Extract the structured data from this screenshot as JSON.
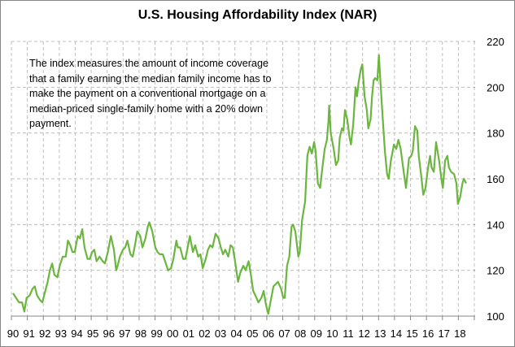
{
  "chart_data": {
    "type": "line",
    "title": "U.S. Housing Affordability Index (NAR)",
    "annotation": "The index measures the amount of income coverage that a  family earning the median family income has to make the payment on a conventional mortgage on a median-priced single-family home with a 20% down payment.",
    "xlabel": "",
    "ylabel": "",
    "y_axis_side": "right",
    "ylim": [
      100,
      220
    ],
    "yticks": [
      100,
      120,
      140,
      160,
      180,
      200,
      220
    ],
    "xlim": [
      1990,
      2019
    ],
    "xtick_labels": [
      "90",
      "91",
      "92",
      "93",
      "94",
      "95",
      "96",
      "97",
      "98",
      "99",
      "00",
      "01",
      "02",
      "03",
      "04",
      "05",
      "06",
      "07",
      "08",
      "09",
      "10",
      "11",
      "12",
      "13",
      "14",
      "15",
      "16",
      "17",
      "18"
    ],
    "grid": true,
    "legend": "none",
    "series_color": "#6BB63F",
    "series": [
      {
        "name": "Housing Affordability Index",
        "points": [
          [
            1990.0,
            110
          ],
          [
            1990.2,
            108
          ],
          [
            1990.4,
            106
          ],
          [
            1990.6,
            106
          ],
          [
            1990.75,
            102
          ],
          [
            1990.9,
            108
          ],
          [
            1991.1,
            109
          ],
          [
            1991.3,
            112
          ],
          [
            1991.45,
            113
          ],
          [
            1991.6,
            109
          ],
          [
            1991.8,
            107
          ],
          [
            1991.95,
            106
          ],
          [
            1992.1,
            110
          ],
          [
            1992.3,
            115
          ],
          [
            1992.45,
            120
          ],
          [
            1992.6,
            123
          ],
          [
            1992.75,
            118
          ],
          [
            1992.95,
            117
          ],
          [
            1993.1,
            122
          ],
          [
            1993.3,
            126
          ],
          [
            1993.5,
            126
          ],
          [
            1993.65,
            133
          ],
          [
            1993.8,
            131
          ],
          [
            1993.95,
            128
          ],
          [
            1994.1,
            128
          ],
          [
            1994.3,
            135
          ],
          [
            1994.45,
            134
          ],
          [
            1994.6,
            138
          ],
          [
            1994.75,
            130
          ],
          [
            1994.95,
            125
          ],
          [
            1995.1,
            125
          ],
          [
            1995.25,
            128
          ],
          [
            1995.4,
            129
          ],
          [
            1995.55,
            124
          ],
          [
            1995.75,
            126
          ],
          [
            1995.95,
            124
          ],
          [
            1996.1,
            123
          ],
          [
            1996.3,
            128
          ],
          [
            1996.5,
            135
          ],
          [
            1996.7,
            129
          ],
          [
            1996.85,
            120
          ],
          [
            1996.95,
            122
          ],
          [
            1997.1,
            126
          ],
          [
            1997.3,
            129
          ],
          [
            1997.45,
            130
          ],
          [
            1997.6,
            133
          ],
          [
            1997.8,
            127
          ],
          [
            1997.95,
            126
          ],
          [
            1998.1,
            131
          ],
          [
            1998.25,
            137
          ],
          [
            1998.45,
            135
          ],
          [
            1998.6,
            130
          ],
          [
            1998.8,
            134
          ],
          [
            1998.95,
            139
          ],
          [
            1999.05,
            141
          ],
          [
            1999.25,
            137
          ],
          [
            1999.45,
            130
          ],
          [
            1999.6,
            128
          ],
          [
            1999.75,
            127
          ],
          [
            1999.95,
            127
          ],
          [
            2000.1,
            124
          ],
          [
            2000.3,
            120
          ],
          [
            2000.5,
            121
          ],
          [
            2000.65,
            125
          ],
          [
            2000.85,
            133
          ],
          [
            2000.95,
            130
          ],
          [
            2001.1,
            130
          ],
          [
            2001.3,
            125
          ],
          [
            2001.45,
            125
          ],
          [
            2001.6,
            130
          ],
          [
            2001.75,
            135
          ],
          [
            2001.95,
            128
          ],
          [
            2002.1,
            131
          ],
          [
            2002.3,
            126
          ],
          [
            2002.45,
            127
          ],
          [
            2002.6,
            121
          ],
          [
            2002.8,
            125
          ],
          [
            2002.95,
            129
          ],
          [
            2003.1,
            131
          ],
          [
            2003.25,
            130
          ],
          [
            2003.45,
            136
          ],
          [
            2003.65,
            134
          ],
          [
            2003.8,
            130
          ],
          [
            2003.95,
            127
          ],
          [
            2004.1,
            129
          ],
          [
            2004.3,
            126
          ],
          [
            2004.45,
            131
          ],
          [
            2004.6,
            130
          ],
          [
            2004.75,
            124
          ],
          [
            2004.95,
            115
          ],
          [
            2005.1,
            119
          ],
          [
            2005.3,
            122
          ],
          [
            2005.45,
            120
          ],
          [
            2005.65,
            124
          ],
          [
            2005.8,
            118
          ],
          [
            2005.95,
            111
          ],
          [
            2006.1,
            109
          ],
          [
            2006.3,
            106
          ],
          [
            2006.5,
            108
          ],
          [
            2006.65,
            111
          ],
          [
            2006.8,
            105
          ],
          [
            2006.95,
            101
          ],
          [
            2007.1,
            106
          ],
          [
            2007.3,
            113
          ],
          [
            2007.45,
            114
          ],
          [
            2007.6,
            115
          ],
          [
            2007.8,
            112
          ],
          [
            2007.95,
            108
          ],
          [
            2008.05,
            108
          ],
          [
            2008.2,
            122
          ],
          [
            2008.35,
            126
          ],
          [
            2008.5,
            139
          ],
          [
            2008.6,
            140
          ],
          [
            2008.75,
            137
          ],
          [
            2008.95,
            126
          ],
          [
            2009.05,
            128
          ],
          [
            2009.2,
            142
          ],
          [
            2009.4,
            150
          ],
          [
            2009.55,
            170
          ],
          [
            2009.7,
            174
          ],
          [
            2009.85,
            171
          ],
          [
            2010.0,
            176
          ],
          [
            2010.1,
            172
          ],
          [
            2010.25,
            158
          ],
          [
            2010.4,
            156
          ],
          [
            2010.55,
            165
          ],
          [
            2010.7,
            173
          ],
          [
            2010.85,
            177
          ],
          [
            2010.95,
            185
          ],
          [
            2011.0,
            192
          ],
          [
            2011.1,
            180
          ],
          [
            2011.3,
            173
          ],
          [
            2011.45,
            166
          ],
          [
            2011.6,
            168
          ],
          [
            2011.7,
            178
          ],
          [
            2011.85,
            182
          ],
          [
            2011.95,
            181
          ],
          [
            2012.05,
            190
          ],
          [
            2012.2,
            186
          ],
          [
            2012.35,
            178
          ],
          [
            2012.45,
            175
          ],
          [
            2012.6,
            184
          ],
          [
            2012.75,
            200
          ],
          [
            2012.85,
            196
          ],
          [
            2012.95,
            202
          ],
          [
            2013.1,
            208
          ],
          [
            2013.2,
            210
          ],
          [
            2013.35,
            196
          ],
          [
            2013.5,
            190
          ],
          [
            2013.6,
            182
          ],
          [
            2013.75,
            186
          ],
          [
            2013.85,
            196
          ],
          [
            2013.95,
            203
          ],
          [
            2014.05,
            204
          ],
          [
            2014.2,
            203
          ],
          [
            2014.3,
            214
          ],
          [
            2014.4,
            203
          ],
          [
            2014.55,
            187
          ],
          [
            2014.7,
            172
          ],
          [
            2014.85,
            162
          ],
          [
            2014.95,
            160
          ],
          [
            2015.1,
            168
          ],
          [
            2015.3,
            175
          ],
          [
            2015.45,
            173
          ],
          [
            2015.6,
            177
          ],
          [
            2015.75,
            173
          ],
          [
            2015.95,
            163
          ],
          [
            2016.1,
            156
          ],
          [
            2016.3,
            169
          ],
          [
            2016.45,
            170
          ],
          [
            2016.55,
            172
          ],
          [
            2016.7,
            183
          ],
          [
            2016.85,
            181
          ],
          [
            2016.95,
            170
          ],
          [
            2017.1,
            162
          ],
          [
            2017.25,
            153
          ],
          [
            2017.4,
            156
          ],
          [
            2017.55,
            164
          ],
          [
            2017.7,
            170
          ],
          [
            2017.8,
            165
          ],
          [
            2017.95,
            163
          ],
          [
            2018.1,
            176
          ],
          [
            2018.3,
            168
          ],
          [
            2018.45,
            160
          ],
          [
            2018.55,
            156
          ],
          [
            2018.7,
            168
          ],
          [
            2018.85,
            170
          ],
          [
            2018.95,
            165
          ],
          [
            2019.1,
            163
          ],
          [
            2019.3,
            162
          ],
          [
            2019.45,
            158
          ],
          [
            2019.55,
            149
          ],
          [
            2019.7,
            152
          ],
          [
            2019.85,
            158
          ],
          [
            2019.95,
            160
          ],
          [
            2020.1,
            158
          ]
        ]
      }
    ]
  }
}
